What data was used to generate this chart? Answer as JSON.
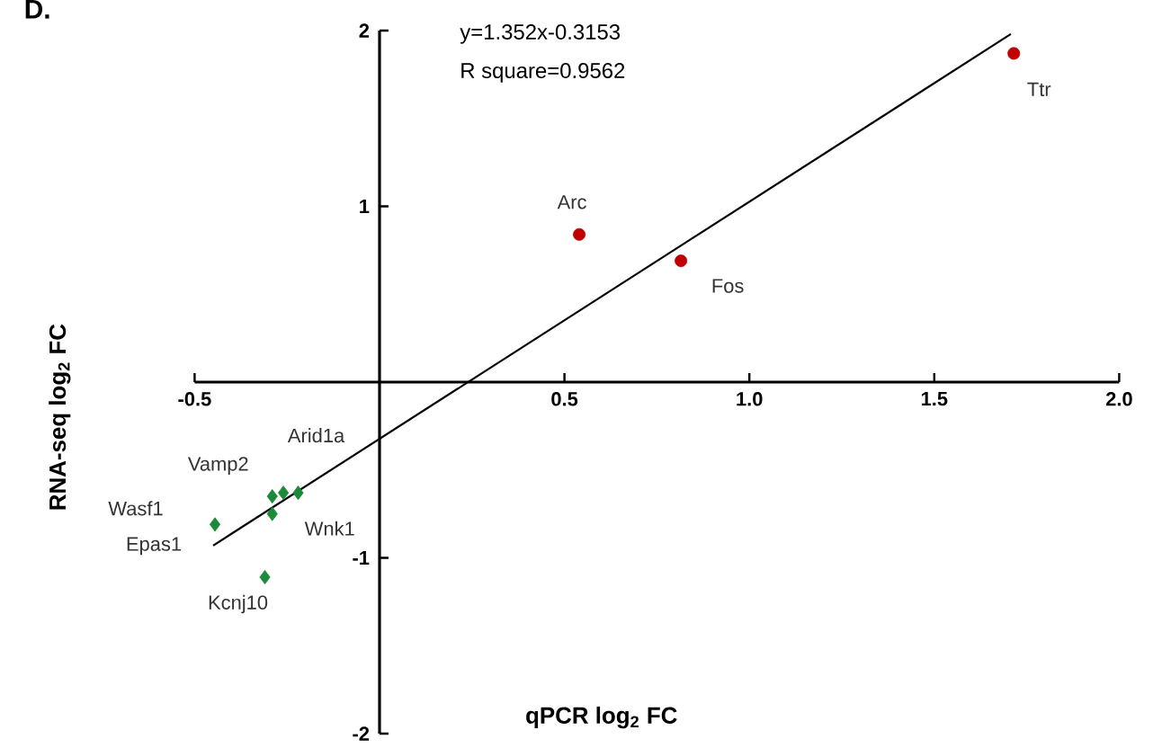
{
  "chart_data": {
    "type": "scatter",
    "title": "D.",
    "xlabel": "qPCR log$_{2}$ FC",
    "ylabel": "RNA-seq log$_{2}$ FC",
    "xlim": [
      -0.5,
      2.0
    ],
    "ylim": [
      -2,
      2
    ],
    "xticks": [
      -0.5,
      0.5,
      {
        "value": 1,
        "label": "1.0"
      },
      1.5,
      {
        "value": 2,
        "label": "2.0"
      }
    ],
    "yticks": [
      -2,
      -1,
      1,
      2
    ],
    "series": [
      {
        "marker": "circle",
        "color": "#c00000",
        "x": [
          1.715,
          0.54,
          0.815
        ],
        "values": [
          1.87,
          0.84,
          0.69
        ]
      },
      {
        "marker": "diamond",
        "color": "#1a8a3a",
        "x": [
          -0.22,
          -0.29,
          -0.445,
          -0.26,
          -0.29,
          -0.31
        ],
        "values": [
          -0.63,
          -0.65,
          -0.81,
          -0.63,
          -0.75,
          -1.11
        ]
      },
      {
        "type": "line",
        "marker": "none",
        "color": "#000000",
        "x": [
          -0.45,
          1.707
        ],
        "values": [
          -0.93,
          1.98
        ]
      }
    ],
    "annotations": [
      "y=1.352x-0.3153",
      "R square=0.9562",
      {
        "text": "Ttr",
        "x": 1.715,
        "y": 1.87
      },
      {
        "text": "Arc",
        "x": 0.54,
        "y": 0.84
      },
      {
        "text": "Fos",
        "x": 0.815,
        "y": 0.69
      },
      {
        "text": "Arid1a",
        "x": -0.22,
        "y": -0.63
      },
      {
        "text": "Vamp2",
        "x": -0.29,
        "y": -0.65
      },
      {
        "text": "Wasf1",
        "x": -0.445,
        "y": -0.81
      },
      {
        "text": "Epas1",
        "x": -0.445,
        "y": -0.81
      },
      {
        "text": "Wnk1",
        "x": -0.29,
        "y": -0.75
      },
      {
        "text": "Kcnj10",
        "x": -0.31,
        "y": -1.11
      }
    ]
  }
}
